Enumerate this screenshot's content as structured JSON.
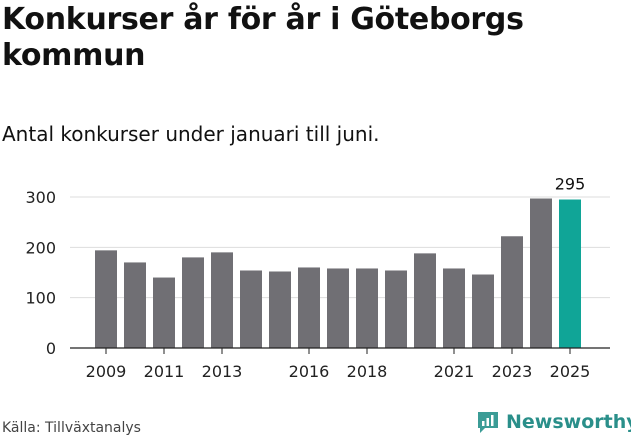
{
  "title": "Konkurser år för år i Göteborgs kommun",
  "subtitle": "Antal konkurser under januari till juni.",
  "source": "Källa: Tillväxtanalys",
  "brand": "Newsworthy",
  "colors": {
    "bar": "#706f74",
    "highlight": "#10a597",
    "grid": "#dddddd",
    "axis": "#222222",
    "brand": "#2a8f8a"
  },
  "chart_data": {
    "type": "bar",
    "title": "Konkurser år för år i Göteborgs kommun",
    "subtitle": "Antal konkurser under januari till juni.",
    "xlabel": "",
    "ylabel": "",
    "ylim": [
      0,
      300
    ],
    "yticks": [
      0,
      100,
      200,
      300
    ],
    "grid": true,
    "categories": [
      "2009",
      "2010",
      "2011",
      "2012",
      "2013",
      "2014",
      "2015",
      "2016",
      "2017",
      "2018",
      "2019",
      "2020",
      "2021",
      "2022",
      "2023",
      "2024",
      "2025"
    ],
    "xtick_labels": [
      "2009",
      "2011",
      "2013",
      "2016",
      "2018",
      "2021",
      "2023",
      "2025"
    ],
    "values": [
      194,
      170,
      140,
      180,
      190,
      154,
      152,
      160,
      158,
      158,
      154,
      188,
      158,
      146,
      222,
      297,
      295
    ],
    "highlight_index": 16,
    "highlight_label": "295"
  }
}
